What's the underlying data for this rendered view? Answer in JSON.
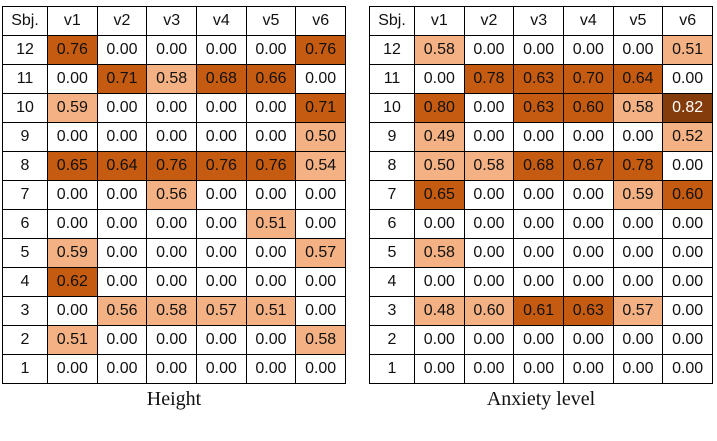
{
  "colors": {
    "high": "#c55a11",
    "mid": "#f4b183",
    "darkest": "#843c0c",
    "none": "#ffffff"
  },
  "chart_data": [
    {
      "type": "heatmap",
      "caption": "Height",
      "corner_label": "Sbj.",
      "columns": [
        "v1",
        "v2",
        "v3",
        "v4",
        "v5",
        "v6"
      ],
      "rows": [
        {
          "subject": "12",
          "values": [
            "0.76",
            "0.00",
            "0.00",
            "0.00",
            "0.00",
            "0.76"
          ]
        },
        {
          "subject": "11",
          "values": [
            "0.00",
            "0.71",
            "0.58",
            "0.68",
            "0.66",
            "0.00"
          ]
        },
        {
          "subject": "10",
          "values": [
            "0.59",
            "0.00",
            "0.00",
            "0.00",
            "0.00",
            "0.71"
          ]
        },
        {
          "subject": "9",
          "values": [
            "0.00",
            "0.00",
            "0.00",
            "0.00",
            "0.00",
            "0.50"
          ]
        },
        {
          "subject": "8",
          "values": [
            "0.65",
            "0.64",
            "0.76",
            "0.76",
            "0.76",
            "0.54"
          ]
        },
        {
          "subject": "7",
          "values": [
            "0.00",
            "0.00",
            "0.56",
            "0.00",
            "0.00",
            "0.00"
          ]
        },
        {
          "subject": "6",
          "values": [
            "0.00",
            "0.00",
            "0.00",
            "0.00",
            "0.51",
            "0.00"
          ]
        },
        {
          "subject": "5",
          "values": [
            "0.59",
            "0.00",
            "0.00",
            "0.00",
            "0.00",
            "0.57"
          ]
        },
        {
          "subject": "4",
          "values": [
            "0.62",
            "0.00",
            "0.00",
            "0.00",
            "0.00",
            "0.00"
          ]
        },
        {
          "subject": "3",
          "values": [
            "0.00",
            "0.56",
            "0.58",
            "0.57",
            "0.51",
            "0.00"
          ]
        },
        {
          "subject": "2",
          "values": [
            "0.51",
            "0.00",
            "0.00",
            "0.00",
            "0.00",
            "0.58"
          ]
        },
        {
          "subject": "1",
          "values": [
            "0.00",
            "0.00",
            "0.00",
            "0.00",
            "0.00",
            "0.00"
          ]
        }
      ],
      "shading": [
        [
          "high",
          "none",
          "none",
          "none",
          "none",
          "high"
        ],
        [
          "none",
          "high",
          "mid",
          "high",
          "high",
          "none"
        ],
        [
          "mid",
          "none",
          "none",
          "none",
          "none",
          "high"
        ],
        [
          "none",
          "none",
          "none",
          "none",
          "none",
          "mid"
        ],
        [
          "high",
          "high",
          "high",
          "high",
          "high",
          "mid"
        ],
        [
          "none",
          "none",
          "mid",
          "none",
          "none",
          "none"
        ],
        [
          "none",
          "none",
          "none",
          "none",
          "mid",
          "none"
        ],
        [
          "mid",
          "none",
          "none",
          "none",
          "none",
          "mid"
        ],
        [
          "high",
          "none",
          "none",
          "none",
          "none",
          "none"
        ],
        [
          "none",
          "mid",
          "mid",
          "mid",
          "mid",
          "none"
        ],
        [
          "mid",
          "none",
          "none",
          "none",
          "none",
          "mid"
        ],
        [
          "none",
          "none",
          "none",
          "none",
          "none",
          "none"
        ]
      ]
    },
    {
      "type": "heatmap",
      "caption": "Anxiety level",
      "corner_label": "Sbj.",
      "columns": [
        "v1",
        "v2",
        "v3",
        "v4",
        "v5",
        "v6"
      ],
      "rows": [
        {
          "subject": "12",
          "values": [
            "0.58",
            "0.00",
            "0.00",
            "0.00",
            "0.00",
            "0.51"
          ]
        },
        {
          "subject": "11",
          "values": [
            "0.00",
            "0.78",
            "0.63",
            "0.70",
            "0.64",
            "0.00"
          ]
        },
        {
          "subject": "10",
          "values": [
            "0.80",
            "0.00",
            "0.63",
            "0.60",
            "0.58",
            "0.82"
          ]
        },
        {
          "subject": "9",
          "values": [
            "0.49",
            "0.00",
            "0.00",
            "0.00",
            "0.00",
            "0.52"
          ]
        },
        {
          "subject": "8",
          "values": [
            "0.50",
            "0.58",
            "0.68",
            "0.67",
            "0.78",
            "0.00"
          ]
        },
        {
          "subject": "7",
          "values": [
            "0.65",
            "0.00",
            "0.00",
            "0.00",
            "0.59",
            "0.60"
          ]
        },
        {
          "subject": "6",
          "values": [
            "0.00",
            "0.00",
            "0.00",
            "0.00",
            "0.00",
            "0.00"
          ]
        },
        {
          "subject": "5",
          "values": [
            "0.58",
            "0.00",
            "0.00",
            "0.00",
            "0.00",
            "0.00"
          ]
        },
        {
          "subject": "4",
          "values": [
            "0.00",
            "0.00",
            "0.00",
            "0.00",
            "0.00",
            "0.00"
          ]
        },
        {
          "subject": "3",
          "values": [
            "0.48",
            "0.60",
            "0.61",
            "0.63",
            "0.57",
            "0.00"
          ]
        },
        {
          "subject": "2",
          "values": [
            "0.00",
            "0.00",
            "0.00",
            "0.00",
            "0.00",
            "0.00"
          ]
        },
        {
          "subject": "1",
          "values": [
            "0.00",
            "0.00",
            "0.00",
            "0.00",
            "0.00",
            "0.00"
          ]
        }
      ],
      "shading": [
        [
          "mid",
          "none",
          "none",
          "none",
          "none",
          "mid"
        ],
        [
          "none",
          "high",
          "high",
          "high",
          "high",
          "none"
        ],
        [
          "high",
          "none",
          "high",
          "high",
          "mid",
          "darkest"
        ],
        [
          "mid",
          "none",
          "none",
          "none",
          "none",
          "mid"
        ],
        [
          "mid",
          "mid",
          "high",
          "high",
          "high",
          "none"
        ],
        [
          "high",
          "none",
          "none",
          "none",
          "mid",
          "high"
        ],
        [
          "none",
          "none",
          "none",
          "none",
          "none",
          "none"
        ],
        [
          "mid",
          "none",
          "none",
          "none",
          "none",
          "none"
        ],
        [
          "none",
          "none",
          "none",
          "none",
          "none",
          "none"
        ],
        [
          "mid",
          "mid",
          "high",
          "high",
          "mid",
          "none"
        ],
        [
          "none",
          "none",
          "none",
          "none",
          "none",
          "none"
        ],
        [
          "none",
          "none",
          "none",
          "none",
          "none",
          "none"
        ]
      ]
    }
  ]
}
